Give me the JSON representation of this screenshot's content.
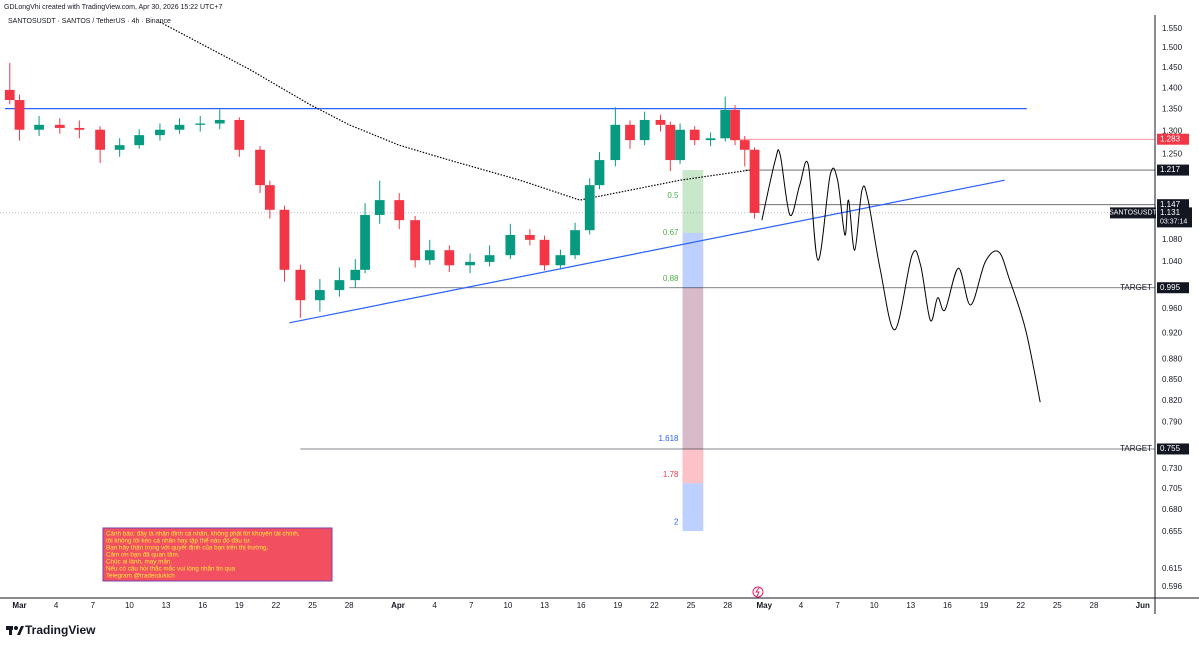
{
  "header": {
    "author_line": "GDLongVhi created with TradingView.com, Apr 30, 2026 15:22 UTC+7",
    "symbol_line": "SANTOSUSDT · SANTOS / TetherUS · 4h · Binance"
  },
  "footer": {
    "brand": "TradingView"
  },
  "warning_box": {
    "lines": [
      "Cảnh báo: đây là nhận định cá nhân, không phải lời khuyên tài chính,",
      "tôi không lôi kéo cá nhân hay tập thể nào đó đầu tư.",
      "Bạn hãy thận trọng với quyết định của bạn trên thị trường.",
      "Cảm ơn bạn đã quan tâm.",
      "Chúc ai lành, may mắn.",
      "Nếu có câu hỏi thắc mắc vui lòng nhắn tin qua",
      "Telegram @traderdukich"
    ]
  },
  "chart_data": {
    "type": "candlestick",
    "log_scale": true,
    "grid": false,
    "up_color": "#089981",
    "down_color": "#f23645",
    "x": [
      -0.8,
      0.0,
      1.6,
      3.3,
      4.9,
      6.6,
      8.2,
      9.8,
      11.5,
      13.1,
      14.8,
      16.4,
      18.0,
      19.7,
      20.5,
      21.7,
      23.0,
      24.6,
      26.2,
      27.5,
      28.3,
      29.5,
      31.1,
      32.4,
      33.6,
      35.2,
      36.9,
      38.5,
      40.2,
      41.8,
      43.0,
      44.3,
      45.5,
      46.7,
      47.5,
      48.8,
      50.0,
      51.2,
      52.5,
      53.3,
      54.1,
      55.3,
      56.6,
      57.8,
      58.6,
      59.4,
      60.2
    ],
    "open": [
      1.396,
      1.372,
      1.304,
      1.315,
      1.308,
      1.304,
      1.26,
      1.27,
      1.292,
      1.304,
      1.315,
      1.318,
      1.326,
      1.26,
      1.186,
      1.137,
      1.026,
      0.974,
      0.991,
      1.008,
      1.026,
      1.127,
      1.156,
      1.117,
      1.043,
      1.061,
      1.034,
      1.04,
      1.052,
      1.089,
      1.08,
      1.034,
      1.052,
      1.098,
      1.186,
      1.238,
      1.315,
      1.281,
      1.326,
      1.315,
      1.238,
      1.304,
      1.281,
      1.285,
      1.349,
      1.281,
      1.26
    ],
    "high": [
      1.462,
      1.385,
      1.335,
      1.33,
      1.325,
      1.312,
      1.285,
      1.305,
      1.318,
      1.33,
      1.335,
      1.35,
      1.332,
      1.268,
      1.195,
      1.145,
      1.035,
      1.01,
      1.03,
      1.045,
      1.15,
      1.195,
      1.17,
      1.125,
      1.08,
      1.07,
      1.055,
      1.07,
      1.11,
      1.1,
      1.088,
      1.062,
      1.112,
      1.2,
      1.255,
      1.355,
      1.325,
      1.345,
      1.338,
      1.322,
      1.318,
      1.312,
      1.298,
      1.38,
      1.36,
      1.29,
      1.265
    ],
    "low": [
      1.362,
      1.28,
      1.29,
      1.295,
      1.285,
      1.232,
      1.245,
      1.262,
      1.28,
      1.295,
      1.3,
      1.305,
      1.245,
      1.17,
      1.12,
      1.005,
      0.945,
      0.955,
      0.98,
      0.995,
      1.02,
      1.11,
      1.1,
      1.03,
      1.035,
      1.022,
      1.02,
      1.032,
      1.045,
      1.07,
      1.025,
      1.028,
      1.045,
      1.09,
      1.178,
      1.225,
      1.262,
      1.27,
      1.3,
      1.215,
      1.23,
      1.27,
      1.268,
      1.278,
      1.27,
      1.225,
      1.12
    ],
    "close": [
      1.372,
      1.304,
      1.315,
      1.308,
      1.304,
      1.26,
      1.27,
      1.292,
      1.304,
      1.315,
      1.318,
      1.326,
      1.26,
      1.186,
      1.137,
      1.026,
      0.974,
      0.991,
      1.008,
      1.026,
      1.127,
      1.156,
      1.117,
      1.043,
      1.061,
      1.034,
      1.04,
      1.052,
      1.089,
      1.08,
      1.034,
      1.052,
      1.098,
      1.186,
      1.238,
      1.315,
      1.281,
      1.326,
      1.315,
      1.238,
      1.304,
      1.281,
      1.285,
      1.349,
      1.281,
      1.26,
      1.131
    ],
    "xlim": [
      -1.6,
      93
    ],
    "xticks": [
      {
        "value": 0,
        "label": "Mar"
      },
      {
        "value": 3,
        "label": "4"
      },
      {
        "value": 6,
        "label": "7"
      },
      {
        "value": 9,
        "label": "10"
      },
      {
        "value": 12,
        "label": "13"
      },
      {
        "value": 15,
        "label": "16"
      },
      {
        "value": 18,
        "label": "19"
      },
      {
        "value": 21,
        "label": "22"
      },
      {
        "value": 24,
        "label": "25"
      },
      {
        "value": 27,
        "label": "28"
      },
      {
        "value": 31,
        "label": "Apr"
      },
      {
        "value": 34,
        "label": "4"
      },
      {
        "value": 37,
        "label": "7"
      },
      {
        "value": 40,
        "label": "10"
      },
      {
        "value": 43,
        "label": "13"
      },
      {
        "value": 46,
        "label": "16"
      },
      {
        "value": 49,
        "label": "19"
      },
      {
        "value": 52,
        "label": "22"
      },
      {
        "value": 55,
        "label": "25"
      },
      {
        "value": 58,
        "label": "28"
      },
      {
        "value": 61,
        "label": "May"
      },
      {
        "value": 64,
        "label": "4"
      },
      {
        "value": 67,
        "label": "7"
      },
      {
        "value": 70,
        "label": "10"
      },
      {
        "value": 73,
        "label": "13"
      },
      {
        "value": 76,
        "label": "16"
      },
      {
        "value": 79,
        "label": "19"
      },
      {
        "value": 82,
        "label": "22"
      },
      {
        "value": 85,
        "label": "25"
      },
      {
        "value": 88,
        "label": "28"
      },
      {
        "value": 92,
        "label": "Jun"
      }
    ],
    "ylim": [
      0.585,
      1.587
    ],
    "yticks": [
      {
        "value": 1.55,
        "label": "1.550"
      },
      {
        "value": 1.5,
        "label": "1.500"
      },
      {
        "value": 1.45,
        "label": "1.450"
      },
      {
        "value": 1.4,
        "label": "1.400"
      },
      {
        "value": 1.35,
        "label": "1.350"
      },
      {
        "value": 1.3,
        "label": "1.300"
      },
      {
        "value": 1.25,
        "label": "1.250"
      },
      {
        "value": 1.08,
        "label": "1.080"
      },
      {
        "value": 1.04,
        "label": "1.040"
      },
      {
        "value": 0.96,
        "label": "0.960"
      },
      {
        "value": 0.92,
        "label": "0.920"
      },
      {
        "value": 0.88,
        "label": "0.880"
      },
      {
        "value": 0.85,
        "label": "0.850"
      },
      {
        "value": 0.82,
        "label": "0.820"
      },
      {
        "value": 0.79,
        "label": "0.790"
      },
      {
        "value": 0.73,
        "label": "0.730"
      },
      0.705,
      {
        "value": 0.68,
        "label": "0.680"
      },
      0.655,
      0.615,
      0.596
    ],
    "moving_average": {
      "color": "#000000",
      "x": [
        11.5,
        18.9,
        23.8,
        27.0,
        31.1,
        35.2,
        41.0,
        45.9,
        49.2,
        54.1,
        59.8
      ],
      "values": [
        1.568,
        1.445,
        1.361,
        1.315,
        1.27,
        1.238,
        1.196,
        1.156,
        1.172,
        1.196,
        1.217
      ]
    },
    "forecast": {
      "color": "#000000",
      "x": [
        60.8,
        61.9,
        62.3,
        63.1,
        63.9,
        64.6,
        65.4,
        66.4,
        67.0,
        67.6,
        67.9,
        68.4,
        69.0,
        69.5,
        70.5,
        71.7,
        73.1,
        73.8,
        74.6,
        75.2,
        75.8,
        76.9,
        77.9,
        79.1,
        80.2,
        81.1,
        82.4,
        83.6
      ],
      "values": [
        1.117,
        1.238,
        1.249,
        1.127,
        1.186,
        1.228,
        1.043,
        1.207,
        1.196,
        1.089,
        1.156,
        1.061,
        1.176,
        1.156,
        1.026,
        0.926,
        1.052,
        1.034,
        0.941,
        0.978,
        0.958,
        1.029,
        0.966,
        1.04,
        1.058,
        1.008,
        0.926,
        0.818
      ]
    },
    "trendline": {
      "color": "#2962ff",
      "x": [
        22.1,
        80.7
      ],
      "values": [
        0.937,
        1.196
      ]
    },
    "resistance": {
      "color": "#2962ff",
      "x": [
        -1.2,
        82.5
      ],
      "values": [
        1.352,
        1.352
      ]
    },
    "levels": [
      {
        "value": 1.283,
        "color": "#f23645",
        "x_start": 59.0
      },
      {
        "value": 1.217,
        "color": "#131722",
        "x_start": 59.4
      },
      {
        "value": 1.147,
        "color": "#131722",
        "x_start": 60.0
      },
      {
        "value": 0.995,
        "color": "#131722",
        "x_start": 27.0,
        "tag": "TARGET"
      },
      {
        "value": 0.755,
        "color": "#131722",
        "x_start": 23.0,
        "tag": "TARGET"
      }
    ],
    "last_price": {
      "symbol": "SANTOSUSDT",
      "value": 1.131,
      "countdown": "03:37:14",
      "color": "#131722"
    },
    "fib": {
      "x": [
        54.3,
        56.0
      ],
      "zones": [
        {
          "top": 1.217,
          "bottom": 1.093,
          "color": "#4caf50"
        },
        {
          "top": 1.093,
          "bottom": 0.995,
          "color": "#2962ff"
        },
        {
          "top": 0.995,
          "bottom": 0.755,
          "color": "#7b1f4b"
        },
        {
          "top": 0.755,
          "bottom": 0.712,
          "color": "#f23645"
        },
        {
          "top": 0.712,
          "bottom": 0.656,
          "color": "#2962ff"
        }
      ],
      "labels": [
        {
          "ratio": 0.5,
          "price": 1.164,
          "color": "#4caf50"
        },
        {
          "ratio": 0.67,
          "price": 1.093,
          "color": "#4caf50"
        },
        {
          "ratio": 0.88,
          "price": 1.01,
          "color": "#4caf50"
        },
        {
          "ratio": 1.618,
          "price": 0.768,
          "color": "#2962ff"
        },
        {
          "ratio": 1.78,
          "price": 0.722,
          "color": "#f23645"
        },
        {
          "ratio": 2,
          "price": 0.666,
          "color": "#2962ff"
        }
      ]
    }
  }
}
